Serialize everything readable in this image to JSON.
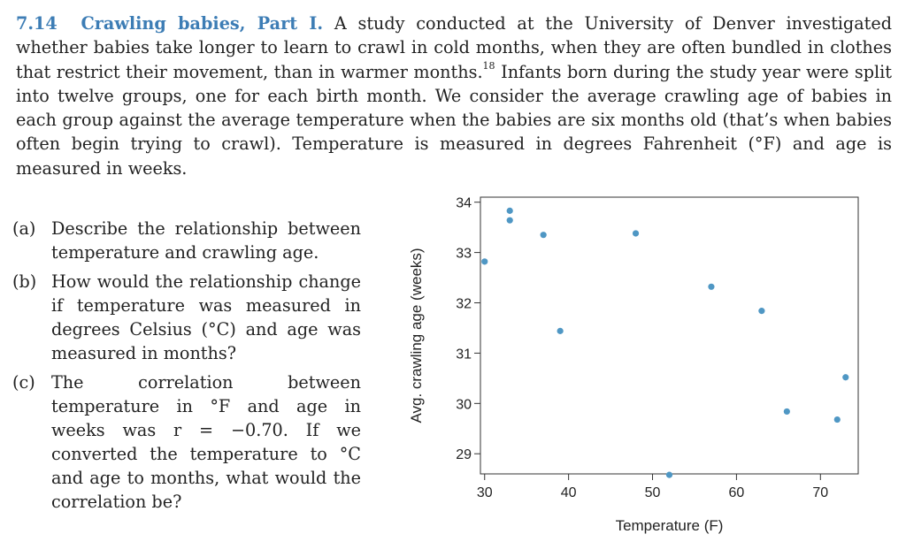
{
  "problem": {
    "number": "7.14",
    "title": "Crawling babies, Part I.",
    "text_a": "A study conducted at the University of Denver investigated whether babies take longer to learn to crawl in cold months, when they are often bundled in clothes that restrict their movement, than in warmer months.",
    "footnote": "18",
    "text_b": "Infants born during the study year were split into twelve groups, one for each birth month. We consider the average crawling age of babies in each group against the average temperature when the babies are six months old (that’s when babies often begin trying to crawl). Temperature is measured in degrees Fahrenheit (°F) and age is measured in weeks."
  },
  "parts": [
    {
      "label": "(a)",
      "text": "Describe the relationship between temperature and crawling age."
    },
    {
      "label": "(b)",
      "text": "How would the relationship change if temperature was measured in degrees Celsius (°C) and age was measured in months?"
    },
    {
      "label": "(c)",
      "text": "The correlation between temperature in °F and age in weeks was r = −0.70. If we converted the temperature to °C and age to months, what would the correlation be?"
    }
  ],
  "chart_data": {
    "type": "scatter",
    "xlabel": "Temperature (F)",
    "ylabel": "Avg. crawling age (weeks)",
    "xlim": [
      29.5,
      74.5
    ],
    "ylim": [
      28.6,
      34.1
    ],
    "xticks": [
      30,
      40,
      50,
      60,
      70
    ],
    "yticks": [
      29,
      30,
      31,
      32,
      33,
      34
    ],
    "x": [
      30,
      33,
      33,
      37,
      39,
      48,
      52,
      57,
      63,
      66,
      72,
      73
    ],
    "y": [
      32.82,
      33.83,
      33.64,
      33.35,
      31.44,
      33.38,
      28.58,
      32.32,
      31.84,
      29.84,
      29.68,
      30.52
    ],
    "marker_color": "#4f97c4"
  }
}
